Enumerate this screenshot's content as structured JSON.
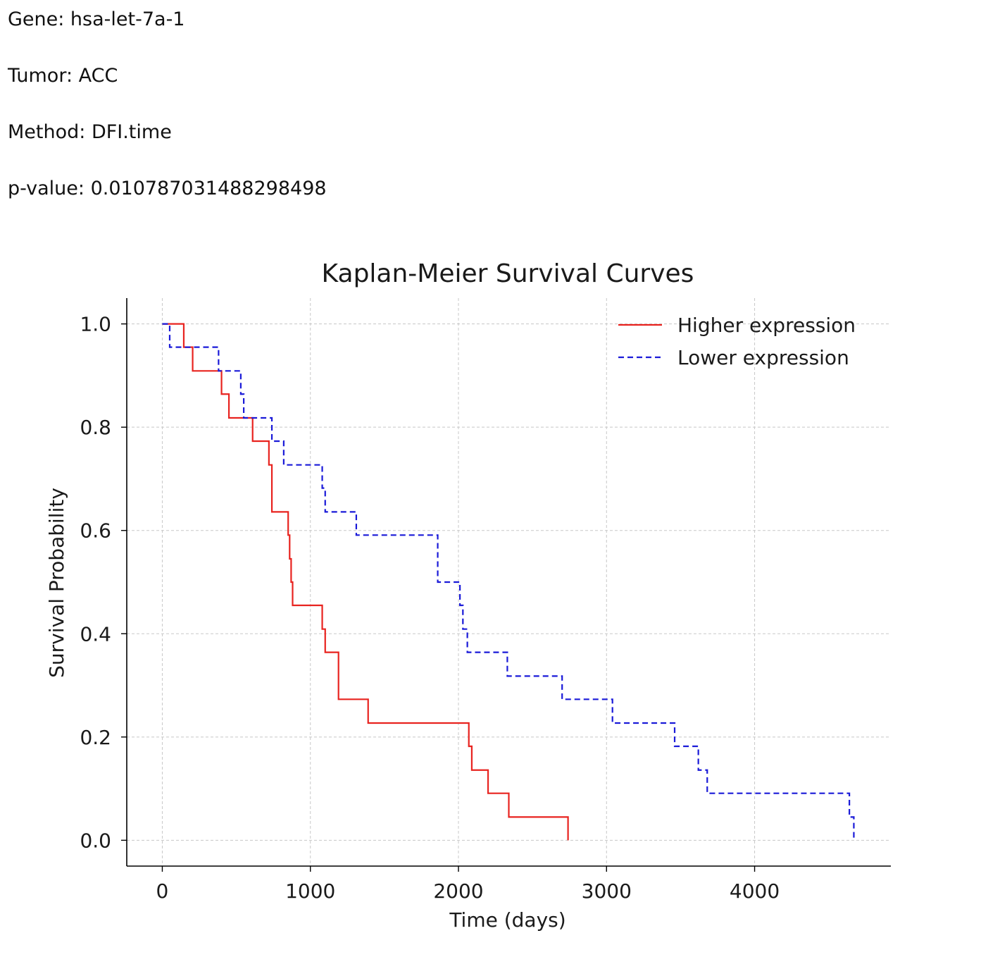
{
  "info": {
    "gene": "Gene: hsa-let-7a-1",
    "tumor": "Tumor: ACC",
    "method": "Method: DFI.time",
    "pvalue": "p-value: 0.010787031488298498"
  },
  "chart_data": {
    "type": "line",
    "step": true,
    "title": "Kaplan-Meier Survival Curves",
    "xlabel": "Time (days)",
    "ylabel": "Survival Probability",
    "xlim": [
      -240,
      4920
    ],
    "ylim": [
      -0.05,
      1.05
    ],
    "xticks": [
      0,
      1000,
      2000,
      3000,
      4000
    ],
    "xtick_labels": [
      "0",
      "1000",
      "2000",
      "3000",
      "4000"
    ],
    "yticks": [
      0.0,
      0.2,
      0.4,
      0.6,
      0.8,
      1.0
    ],
    "ytick_labels": [
      "0.0",
      "0.2",
      "0.4",
      "0.6",
      "0.8",
      "1.0"
    ],
    "grid": true,
    "legend_position": "upper right",
    "series": [
      {
        "name": "Higher expression",
        "color": "#e8231f",
        "style": "solid",
        "x": [
          0,
          145,
          205,
          400,
          450,
          610,
          720,
          740,
          850,
          860,
          870,
          880,
          1080,
          1100,
          1190,
          1390,
          2070,
          2090,
          2200,
          2340,
          2740
        ],
        "y": [
          1.0,
          0.955,
          0.909,
          0.864,
          0.818,
          0.773,
          0.727,
          0.636,
          0.591,
          0.545,
          0.5,
          0.455,
          0.409,
          0.364,
          0.273,
          0.227,
          0.182,
          0.136,
          0.091,
          0.045,
          0.0
        ]
      },
      {
        "name": "Lower expression",
        "color": "#1a1ad8",
        "style": "dashed",
        "x": [
          0,
          50,
          380,
          530,
          550,
          740,
          820,
          1080,
          1100,
          1310,
          1860,
          2010,
          2030,
          2060,
          2330,
          2700,
          3040,
          3460,
          3620,
          3680,
          4640,
          4670
        ],
        "y": [
          1.0,
          0.955,
          0.909,
          0.864,
          0.818,
          0.773,
          0.727,
          0.682,
          0.636,
          0.591,
          0.5,
          0.455,
          0.409,
          0.364,
          0.318,
          0.273,
          0.227,
          0.182,
          0.136,
          0.091,
          0.045,
          0.0
        ]
      }
    ]
  }
}
